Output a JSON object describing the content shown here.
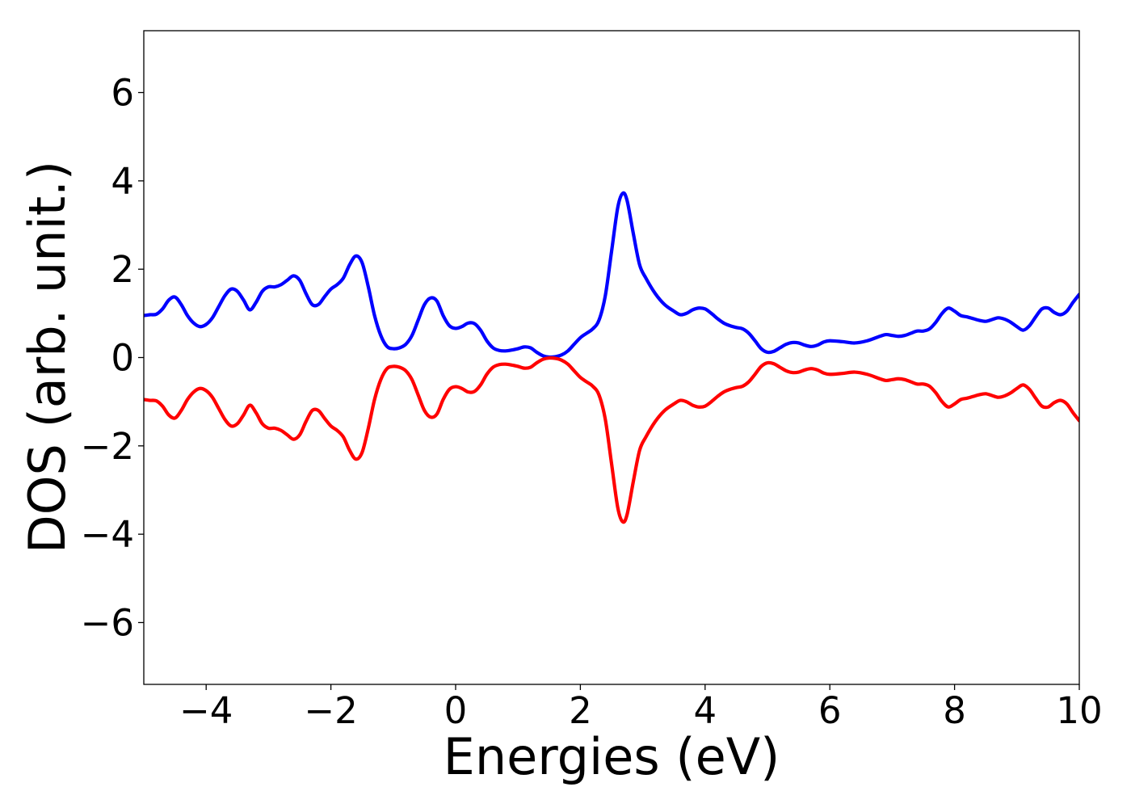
{
  "chart_data": {
    "type": "line",
    "title": "",
    "xlabel": "Energies (eV)",
    "ylabel": "DOS (arb. unit.)",
    "xlim": [
      -5,
      10
    ],
    "ylim": [
      -7.4,
      7.4
    ],
    "x_ticks": [
      -4,
      -2,
      0,
      2,
      4,
      6,
      8,
      10
    ],
    "x_tick_labels": [
      "−4",
      "−2",
      "0",
      "2",
      "4",
      "6",
      "8",
      "10"
    ],
    "y_ticks": [
      -6,
      -4,
      -2,
      0,
      2,
      4,
      6
    ],
    "y_tick_labels": [
      "−6",
      "−4",
      "−2",
      "0",
      "2",
      "4",
      "6"
    ],
    "grid": false,
    "legend": "none",
    "series": [
      {
        "color": "#0000ff",
        "points": [
          [
            -5.0,
            0.95
          ],
          [
            -4.9,
            0.97
          ],
          [
            -4.8,
            0.98
          ],
          [
            -4.7,
            1.1
          ],
          [
            -4.6,
            1.3
          ],
          [
            -4.5,
            1.37
          ],
          [
            -4.4,
            1.2
          ],
          [
            -4.3,
            0.95
          ],
          [
            -4.2,
            0.78
          ],
          [
            -4.1,
            0.7
          ],
          [
            -4.0,
            0.75
          ],
          [
            -3.9,
            0.9
          ],
          [
            -3.8,
            1.15
          ],
          [
            -3.7,
            1.4
          ],
          [
            -3.6,
            1.55
          ],
          [
            -3.5,
            1.5
          ],
          [
            -3.4,
            1.3
          ],
          [
            -3.3,
            1.08
          ],
          [
            -3.2,
            1.25
          ],
          [
            -3.1,
            1.5
          ],
          [
            -3.0,
            1.6
          ],
          [
            -2.9,
            1.6
          ],
          [
            -2.8,
            1.65
          ],
          [
            -2.7,
            1.75
          ],
          [
            -2.6,
            1.85
          ],
          [
            -2.5,
            1.75
          ],
          [
            -2.4,
            1.45
          ],
          [
            -2.3,
            1.2
          ],
          [
            -2.2,
            1.2
          ],
          [
            -2.1,
            1.38
          ],
          [
            -2.0,
            1.55
          ],
          [
            -1.9,
            1.65
          ],
          [
            -1.8,
            1.8
          ],
          [
            -1.7,
            2.1
          ],
          [
            -1.6,
            2.3
          ],
          [
            -1.5,
            2.15
          ],
          [
            -1.4,
            1.6
          ],
          [
            -1.3,
            0.95
          ],
          [
            -1.2,
            0.5
          ],
          [
            -1.1,
            0.25
          ],
          [
            -1.0,
            0.2
          ],
          [
            -0.9,
            0.22
          ],
          [
            -0.8,
            0.3
          ],
          [
            -0.7,
            0.5
          ],
          [
            -0.6,
            0.85
          ],
          [
            -0.5,
            1.2
          ],
          [
            -0.4,
            1.35
          ],
          [
            -0.3,
            1.28
          ],
          [
            -0.2,
            0.95
          ],
          [
            -0.1,
            0.72
          ],
          [
            0.0,
            0.66
          ],
          [
            0.1,
            0.7
          ],
          [
            0.2,
            0.78
          ],
          [
            0.3,
            0.77
          ],
          [
            0.4,
            0.62
          ],
          [
            0.5,
            0.38
          ],
          [
            0.6,
            0.22
          ],
          [
            0.7,
            0.16
          ],
          [
            0.8,
            0.15
          ],
          [
            0.9,
            0.17
          ],
          [
            1.0,
            0.2
          ],
          [
            1.1,
            0.24
          ],
          [
            1.2,
            0.22
          ],
          [
            1.3,
            0.12
          ],
          [
            1.4,
            0.04
          ],
          [
            1.5,
            0.01
          ],
          [
            1.6,
            0.02
          ],
          [
            1.7,
            0.06
          ],
          [
            1.8,
            0.15
          ],
          [
            1.9,
            0.3
          ],
          [
            2.0,
            0.45
          ],
          [
            2.1,
            0.55
          ],
          [
            2.2,
            0.65
          ],
          [
            2.3,
            0.85
          ],
          [
            2.4,
            1.4
          ],
          [
            2.5,
            2.4
          ],
          [
            2.6,
            3.4
          ],
          [
            2.68,
            3.72
          ],
          [
            2.75,
            3.55
          ],
          [
            2.85,
            2.8
          ],
          [
            2.95,
            2.1
          ],
          [
            3.05,
            1.8
          ],
          [
            3.2,
            1.45
          ],
          [
            3.35,
            1.2
          ],
          [
            3.5,
            1.05
          ],
          [
            3.6,
            0.97
          ],
          [
            3.7,
            1.0
          ],
          [
            3.8,
            1.08
          ],
          [
            3.9,
            1.12
          ],
          [
            4.0,
            1.1
          ],
          [
            4.1,
            1.0
          ],
          [
            4.2,
            0.88
          ],
          [
            4.3,
            0.78
          ],
          [
            4.4,
            0.72
          ],
          [
            4.5,
            0.68
          ],
          [
            4.6,
            0.65
          ],
          [
            4.7,
            0.55
          ],
          [
            4.8,
            0.38
          ],
          [
            4.9,
            0.2
          ],
          [
            5.0,
            0.12
          ],
          [
            5.1,
            0.14
          ],
          [
            5.2,
            0.22
          ],
          [
            5.3,
            0.3
          ],
          [
            5.4,
            0.34
          ],
          [
            5.5,
            0.33
          ],
          [
            5.6,
            0.28
          ],
          [
            5.7,
            0.25
          ],
          [
            5.8,
            0.28
          ],
          [
            5.9,
            0.35
          ],
          [
            6.0,
            0.38
          ],
          [
            6.2,
            0.36
          ],
          [
            6.4,
            0.33
          ],
          [
            6.6,
            0.38
          ],
          [
            6.8,
            0.48
          ],
          [
            6.9,
            0.52
          ],
          [
            7.0,
            0.5
          ],
          [
            7.1,
            0.48
          ],
          [
            7.2,
            0.5
          ],
          [
            7.3,
            0.55
          ],
          [
            7.4,
            0.6
          ],
          [
            7.5,
            0.6
          ],
          [
            7.6,
            0.65
          ],
          [
            7.7,
            0.8
          ],
          [
            7.8,
            1.0
          ],
          [
            7.9,
            1.12
          ],
          [
            8.0,
            1.05
          ],
          [
            8.1,
            0.95
          ],
          [
            8.2,
            0.92
          ],
          [
            8.3,
            0.88
          ],
          [
            8.4,
            0.84
          ],
          [
            8.5,
            0.82
          ],
          [
            8.6,
            0.86
          ],
          [
            8.7,
            0.9
          ],
          [
            8.8,
            0.87
          ],
          [
            8.9,
            0.8
          ],
          [
            9.0,
            0.7
          ],
          [
            9.1,
            0.62
          ],
          [
            9.2,
            0.72
          ],
          [
            9.3,
            0.92
          ],
          [
            9.4,
            1.1
          ],
          [
            9.5,
            1.12
          ],
          [
            9.6,
            1.02
          ],
          [
            9.7,
            0.97
          ],
          [
            9.8,
            1.05
          ],
          [
            9.9,
            1.25
          ],
          [
            10.0,
            1.43
          ]
        ]
      },
      {
        "color": "#ff0000",
        "points": [
          [
            -5.0,
            -0.95
          ],
          [
            -4.9,
            -0.97
          ],
          [
            -4.8,
            -0.98
          ],
          [
            -4.7,
            -1.1
          ],
          [
            -4.6,
            -1.3
          ],
          [
            -4.5,
            -1.37
          ],
          [
            -4.4,
            -1.2
          ],
          [
            -4.3,
            -0.95
          ],
          [
            -4.2,
            -0.78
          ],
          [
            -4.1,
            -0.7
          ],
          [
            -4.0,
            -0.75
          ],
          [
            -3.9,
            -0.9
          ],
          [
            -3.8,
            -1.15
          ],
          [
            -3.7,
            -1.4
          ],
          [
            -3.6,
            -1.55
          ],
          [
            -3.5,
            -1.5
          ],
          [
            -3.4,
            -1.3
          ],
          [
            -3.3,
            -1.08
          ],
          [
            -3.2,
            -1.25
          ],
          [
            -3.1,
            -1.5
          ],
          [
            -3.0,
            -1.6
          ],
          [
            -2.9,
            -1.6
          ],
          [
            -2.8,
            -1.65
          ],
          [
            -2.7,
            -1.75
          ],
          [
            -2.6,
            -1.85
          ],
          [
            -2.5,
            -1.75
          ],
          [
            -2.4,
            -1.45
          ],
          [
            -2.3,
            -1.2
          ],
          [
            -2.2,
            -1.2
          ],
          [
            -2.1,
            -1.38
          ],
          [
            -2.0,
            -1.55
          ],
          [
            -1.9,
            -1.65
          ],
          [
            -1.8,
            -1.8
          ],
          [
            -1.7,
            -2.1
          ],
          [
            -1.6,
            -2.3
          ],
          [
            -1.5,
            -2.15
          ],
          [
            -1.4,
            -1.6
          ],
          [
            -1.3,
            -0.95
          ],
          [
            -1.2,
            -0.5
          ],
          [
            -1.1,
            -0.25
          ],
          [
            -1.0,
            -0.2
          ],
          [
            -0.9,
            -0.22
          ],
          [
            -0.8,
            -0.3
          ],
          [
            -0.7,
            -0.5
          ],
          [
            -0.6,
            -0.85
          ],
          [
            -0.5,
            -1.2
          ],
          [
            -0.4,
            -1.35
          ],
          [
            -0.3,
            -1.28
          ],
          [
            -0.2,
            -0.95
          ],
          [
            -0.1,
            -0.72
          ],
          [
            0.0,
            -0.66
          ],
          [
            0.1,
            -0.7
          ],
          [
            0.2,
            -0.78
          ],
          [
            0.3,
            -0.77
          ],
          [
            0.4,
            -0.62
          ],
          [
            0.5,
            -0.38
          ],
          [
            0.6,
            -0.22
          ],
          [
            0.7,
            -0.16
          ],
          [
            0.8,
            -0.15
          ],
          [
            0.9,
            -0.17
          ],
          [
            1.0,
            -0.2
          ],
          [
            1.1,
            -0.24
          ],
          [
            1.2,
            -0.22
          ],
          [
            1.3,
            -0.12
          ],
          [
            1.4,
            -0.04
          ],
          [
            1.5,
            -0.01
          ],
          [
            1.6,
            -0.02
          ],
          [
            1.7,
            -0.06
          ],
          [
            1.8,
            -0.15
          ],
          [
            1.9,
            -0.3
          ],
          [
            2.0,
            -0.45
          ],
          [
            2.1,
            -0.55
          ],
          [
            2.2,
            -0.65
          ],
          [
            2.3,
            -0.85
          ],
          [
            2.4,
            -1.4
          ],
          [
            2.5,
            -2.4
          ],
          [
            2.6,
            -3.4
          ],
          [
            2.68,
            -3.72
          ],
          [
            2.75,
            -3.55
          ],
          [
            2.85,
            -2.8
          ],
          [
            2.95,
            -2.1
          ],
          [
            3.05,
            -1.8
          ],
          [
            3.2,
            -1.45
          ],
          [
            3.35,
            -1.2
          ],
          [
            3.5,
            -1.05
          ],
          [
            3.6,
            -0.97
          ],
          [
            3.7,
            -1.0
          ],
          [
            3.8,
            -1.08
          ],
          [
            3.9,
            -1.12
          ],
          [
            4.0,
            -1.1
          ],
          [
            4.1,
            -1.0
          ],
          [
            4.2,
            -0.88
          ],
          [
            4.3,
            -0.78
          ],
          [
            4.4,
            -0.72
          ],
          [
            4.5,
            -0.68
          ],
          [
            4.6,
            -0.65
          ],
          [
            4.7,
            -0.55
          ],
          [
            4.8,
            -0.38
          ],
          [
            4.9,
            -0.2
          ],
          [
            5.0,
            -0.12
          ],
          [
            5.1,
            -0.14
          ],
          [
            5.2,
            -0.22
          ],
          [
            5.3,
            -0.3
          ],
          [
            5.4,
            -0.34
          ],
          [
            5.5,
            -0.33
          ],
          [
            5.6,
            -0.28
          ],
          [
            5.7,
            -0.25
          ],
          [
            5.8,
            -0.28
          ],
          [
            5.9,
            -0.35
          ],
          [
            6.0,
            -0.38
          ],
          [
            6.2,
            -0.36
          ],
          [
            6.4,
            -0.33
          ],
          [
            6.6,
            -0.38
          ],
          [
            6.8,
            -0.48
          ],
          [
            6.9,
            -0.52
          ],
          [
            7.0,
            -0.5
          ],
          [
            7.1,
            -0.48
          ],
          [
            7.2,
            -0.5
          ],
          [
            7.3,
            -0.55
          ],
          [
            7.4,
            -0.6
          ],
          [
            7.5,
            -0.6
          ],
          [
            7.6,
            -0.65
          ],
          [
            7.7,
            -0.8
          ],
          [
            7.8,
            -1.0
          ],
          [
            7.9,
            -1.12
          ],
          [
            8.0,
            -1.05
          ],
          [
            8.1,
            -0.95
          ],
          [
            8.2,
            -0.92
          ],
          [
            8.3,
            -0.88
          ],
          [
            8.4,
            -0.84
          ],
          [
            8.5,
            -0.82
          ],
          [
            8.6,
            -0.86
          ],
          [
            8.7,
            -0.9
          ],
          [
            8.8,
            -0.87
          ],
          [
            8.9,
            -0.8
          ],
          [
            9.0,
            -0.7
          ],
          [
            9.1,
            -0.62
          ],
          [
            9.2,
            -0.72
          ],
          [
            9.3,
            -0.92
          ],
          [
            9.4,
            -1.1
          ],
          [
            9.5,
            -1.12
          ],
          [
            9.6,
            -1.02
          ],
          [
            9.7,
            -0.97
          ],
          [
            9.8,
            -1.05
          ],
          [
            9.9,
            -1.25
          ],
          [
            10.0,
            -1.43
          ]
        ]
      }
    ]
  }
}
